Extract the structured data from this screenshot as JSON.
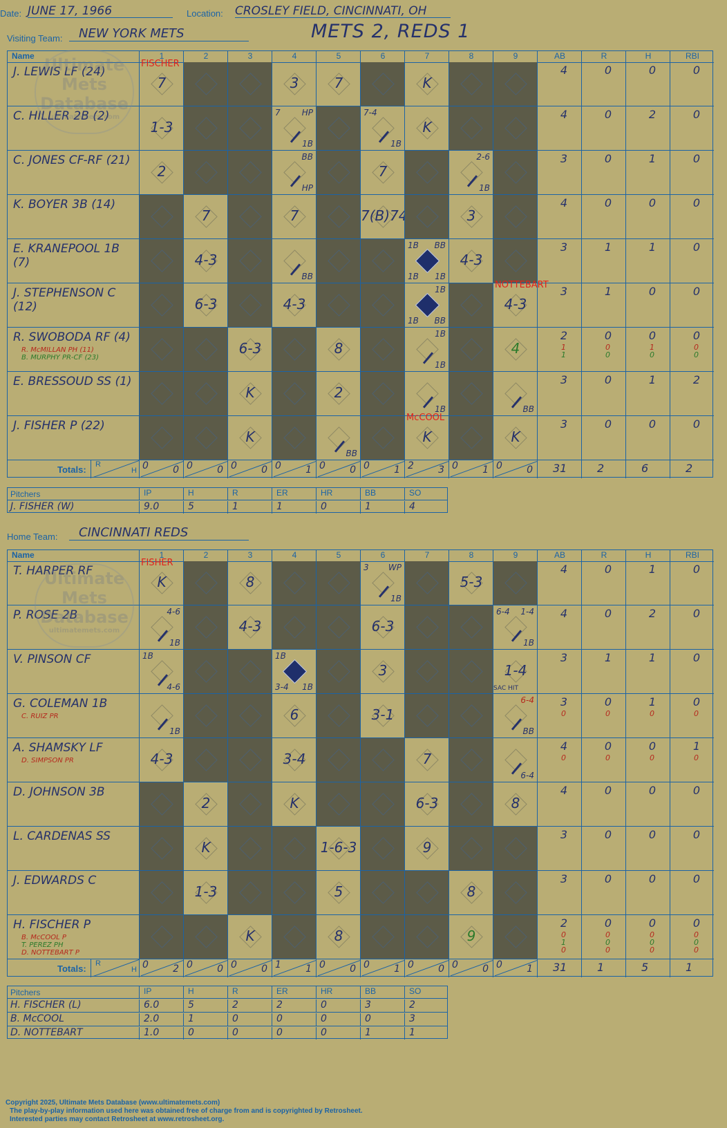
{
  "header": {
    "date_label": "Date:",
    "date": "JUNE 17, 1966",
    "location_label": "Location:",
    "location": "CROSLEY FIELD, CINCINNATI, OH",
    "visiting_label": "Visiting Team:",
    "visiting_team": "NEW YORK METS",
    "result": "METS 2, REDS 1",
    "home_label": "Home Team:",
    "home_team": "CINCINNATI REDS"
  },
  "watermark": {
    "line1": "Ultimate",
    "line2": "Mets",
    "line3": "Database",
    "line4": "ultimatemets.com"
  },
  "columns": {
    "name": "Name",
    "innings": [
      "1",
      "2",
      "3",
      "4",
      "5",
      "6",
      "7",
      "8",
      "9"
    ],
    "stats": [
      "AB",
      "R",
      "H",
      "RBI"
    ],
    "totals": "Totals:",
    "r": "R",
    "h": "H"
  },
  "pitch_cols": {
    "title": "Pitchers",
    "cols": [
      "IP",
      "H",
      "R",
      "ER",
      "HR",
      "BB",
      "SO"
    ]
  },
  "visitors": {
    "batters": [
      {
        "name": "J. LEWIS LF (24)",
        "subs": [],
        "stats": [
          [
            "4"
          ],
          [
            "0"
          ],
          [
            "0"
          ],
          [
            "0"
          ]
        ],
        "dark": [
          2,
          3,
          6,
          8,
          9
        ],
        "cells": {
          "1": {
            "mark": "7",
            "top": "FISCHER"
          },
          "4": {
            "mark": "3"
          },
          "5": {
            "mark": "7"
          },
          "7": {
            "mark": "K"
          }
        }
      },
      {
        "name": "C. HILLER 2B (2)",
        "subs": [],
        "stats": [
          [
            "4"
          ],
          [
            "0"
          ],
          [
            "2"
          ],
          [
            "0"
          ]
        ],
        "dark": [
          2,
          3,
          5,
          8,
          9
        ],
        "cells": {
          "1": {
            "mark": "1-3"
          },
          "4": {
            "a1": "7",
            "a2": "HP",
            "a3": "1B",
            "path": true
          },
          "6": {
            "a1": "7-4",
            "a3": "1B",
            "path": true
          },
          "7": {
            "mark": "K"
          }
        }
      },
      {
        "name": "C. JONES CF-RF (21)",
        "subs": [],
        "stats": [
          [
            "3"
          ],
          [
            "0"
          ],
          [
            "1"
          ],
          [
            "0"
          ]
        ],
        "dark": [
          2,
          3,
          5,
          7,
          9
        ],
        "cells": {
          "1": {
            "mark": "2"
          },
          "4": {
            "a2": "BB",
            "a3": "HP",
            "path": true
          },
          "6": {
            "mark": "7"
          },
          "8": {
            "a2": "2-6",
            "a3": "1B",
            "path": true
          }
        }
      },
      {
        "name": "K. BOYER 3B (14)",
        "subs": [],
        "stats": [
          [
            "4"
          ],
          [
            "0"
          ],
          [
            "0"
          ],
          [
            "0"
          ]
        ],
        "dark": [
          1,
          3,
          5,
          7,
          9
        ],
        "cells": {
          "2": {
            "mark": "7"
          },
          "4": {
            "mark": "7"
          },
          "6": {
            "mark": "7(B)74"
          },
          "8": {
            "mark": "3"
          }
        }
      },
      {
        "name": "E. KRANEPOOL 1B (7)",
        "subs": [],
        "stats": [
          [
            "3"
          ],
          [
            "1"
          ],
          [
            "1"
          ],
          [
            "0"
          ]
        ],
        "dark": [
          1,
          3,
          5,
          6,
          9
        ],
        "cells": {
          "2": {
            "mark": "4-3"
          },
          "4": {
            "a3": "BB",
            "path": true
          },
          "7": {
            "a1": "1B",
            "a2": "BB",
            "a3": "1B",
            "a4": "1B",
            "run": true
          },
          "8": {
            "mark": "4-3"
          }
        }
      },
      {
        "name": "J. STEPHENSON C (12)",
        "subs": [],
        "stats": [
          [
            "3"
          ],
          [
            "1"
          ],
          [
            "0"
          ],
          [
            "0"
          ]
        ],
        "dark": [
          1,
          3,
          5,
          6,
          8
        ],
        "cells": {
          "2": {
            "mark": "6-3"
          },
          "4": {
            "mark": "4-3"
          },
          "7": {
            "a2": "1B",
            "a3": "BB",
            "a4": "1B",
            "run": true
          },
          "9": {
            "mark": "4-3",
            "top": "NOTTEBART"
          }
        }
      },
      {
        "name": "R. SWOBODA RF (4)",
        "subs": [
          {
            "name": "R. McMILLAN PH (11)",
            "cls": "dred"
          },
          {
            "name": "B. MURPHY PR-CF (23)",
            "cls": "grn"
          }
        ],
        "stats": [
          [
            "2",
            "1",
            "1"
          ],
          [
            "0",
            "0",
            "0"
          ],
          [
            "0",
            "1",
            "0"
          ],
          [
            "0",
            "0",
            "0"
          ]
        ],
        "dark": [
          1,
          2,
          4,
          6,
          8
        ],
        "cells": {
          "3": {
            "mark": "6-3"
          },
          "5": {
            "mark": "8"
          },
          "7": {
            "a2": "1B",
            "a3": "1B",
            "path": true
          },
          "9": {
            "mark": "4",
            "cls": "grn"
          }
        }
      },
      {
        "name": "E. BRESSOUD SS (1)",
        "subs": [],
        "stats": [
          [
            "3"
          ],
          [
            "0"
          ],
          [
            "1"
          ],
          [
            "2"
          ]
        ],
        "dark": [
          1,
          2,
          4,
          6,
          8
        ],
        "cells": {
          "3": {
            "mark": "K"
          },
          "5": {
            "mark": "2"
          },
          "7": {
            "a3": "1B",
            "path": true
          },
          "9": {
            "a3": "BB",
            "path": true
          }
        }
      },
      {
        "name": "J. FISHER P (22)",
        "subs": [],
        "stats": [
          [
            "3"
          ],
          [
            "0"
          ],
          [
            "0"
          ],
          [
            "0"
          ]
        ],
        "dark": [
          1,
          2,
          4,
          6,
          8
        ],
        "cells": {
          "3": {
            "mark": "K"
          },
          "5": {
            "a3": "BB",
            "path": true
          },
          "7": {
            "mark": "K",
            "top": "McCOOL"
          },
          "9": {
            "mark": "K"
          }
        }
      }
    ],
    "totals": {
      "rh": [
        [
          "0",
          "0"
        ],
        [
          "0",
          "0"
        ],
        [
          "0",
          "0"
        ],
        [
          "0",
          "1"
        ],
        [
          "0",
          "0"
        ],
        [
          "0",
          "1"
        ],
        [
          "2",
          "3"
        ],
        [
          "0",
          "1"
        ],
        [
          "0",
          "0"
        ]
      ],
      "stats": [
        "31",
        "2",
        "6",
        "2"
      ]
    },
    "pitchers": [
      {
        "name": "J. FISHER (W)",
        "vals": [
          "9.0",
          "5",
          "1",
          "1",
          "0",
          "1",
          "4"
        ]
      }
    ]
  },
  "home": {
    "batters": [
      {
        "name": "T. HARPER RF",
        "subs": [],
        "stats": [
          [
            "4"
          ],
          [
            "0"
          ],
          [
            "1"
          ],
          [
            "0"
          ]
        ],
        "dark": [
          2,
          4,
          5,
          7,
          9
        ],
        "cells": {
          "1": {
            "mark": "K",
            "top": "FISHER"
          },
          "3": {
            "mark": "8"
          },
          "6": {
            "a1": "3",
            "a2": "WP",
            "a3": "1B",
            "path": true
          },
          "8": {
            "mark": "5-3"
          }
        }
      },
      {
        "name": "P. ROSE 2B",
        "subs": [],
        "stats": [
          [
            "4"
          ],
          [
            "0"
          ],
          [
            "2"
          ],
          [
            "0"
          ]
        ],
        "dark": [
          2,
          4,
          5,
          7,
          8
        ],
        "cells": {
          "1": {
            "a2": "4-6",
            "a3": "1B",
            "path": true
          },
          "3": {
            "mark": "4-3"
          },
          "6": {
            "mark": "6-3"
          },
          "9": {
            "a1": "6-4",
            "a2": "1-4",
            "a3": "1B",
            "path": true
          }
        }
      },
      {
        "name": "V. PINSON CF",
        "subs": [],
        "stats": [
          [
            "3"
          ],
          [
            "1"
          ],
          [
            "1"
          ],
          [
            "0"
          ]
        ],
        "dark": [
          2,
          3,
          5,
          7,
          8
        ],
        "cells": {
          "1": {
            "a1": "1B",
            "a3": "4-6",
            "path": true
          },
          "4": {
            "a1": "1B",
            "a3": "1B",
            "a4": "3-4",
            "run": true
          },
          "6": {
            "mark": "3"
          },
          "9": {
            "mark": "1-4",
            "sac": "SAC HIT"
          }
        }
      },
      {
        "name": "G. COLEMAN 1B",
        "subs": [
          {
            "name": "C. RUIZ PR",
            "cls": "dred"
          }
        ],
        "stats": [
          [
            "3",
            "0"
          ],
          [
            "0",
            "0"
          ],
          [
            "1",
            "0"
          ],
          [
            "0",
            "0"
          ]
        ],
        "dark": [
          2,
          3,
          5,
          7,
          8
        ],
        "cells": {
          "1": {
            "a3": "1B",
            "path": true
          },
          "4": {
            "mark": "6"
          },
          "6": {
            "mark": "3-1"
          },
          "9": {
            "a2": "6-4",
            "a3": "BB",
            "path": true,
            "a2cls": "dred"
          }
        }
      },
      {
        "name": "A. SHAMSKY LF",
        "subs": [
          {
            "name": "D. SIMPSON PR",
            "cls": "dred"
          }
        ],
        "stats": [
          [
            "4",
            "0"
          ],
          [
            "0",
            "0"
          ],
          [
            "0",
            "0"
          ],
          [
            "1",
            "0"
          ]
        ],
        "dark": [
          2,
          3,
          5,
          6,
          8
        ],
        "cells": {
          "1": {
            "mark": "4-3"
          },
          "4": {
            "mark": "3-4"
          },
          "7": {
            "mark": "7"
          },
          "9": {
            "a3": "6-4",
            "path": true
          }
        }
      },
      {
        "name": "D. JOHNSON 3B",
        "subs": [],
        "stats": [
          [
            "4"
          ],
          [
            "0"
          ],
          [
            "0"
          ],
          [
            "0"
          ]
        ],
        "dark": [
          1,
          3,
          5,
          6,
          8
        ],
        "cells": {
          "2": {
            "mark": "2"
          },
          "4": {
            "mark": "K"
          },
          "7": {
            "mark": "6-3"
          },
          "9": {
            "mark": "8"
          }
        }
      },
      {
        "name": "L. CARDENAS SS",
        "subs": [],
        "stats": [
          [
            "3"
          ],
          [
            "0"
          ],
          [
            "0"
          ],
          [
            "0"
          ]
        ],
        "dark": [
          1,
          3,
          4,
          6,
          8,
          9
        ],
        "cells": {
          "2": {
            "mark": "K"
          },
          "5": {
            "mark": "1-6-3"
          },
          "7": {
            "mark": "9"
          }
        }
      },
      {
        "name": "J. EDWARDS C",
        "subs": [],
        "stats": [
          [
            "3"
          ],
          [
            "0"
          ],
          [
            "0"
          ],
          [
            "0"
          ]
        ],
        "dark": [
          1,
          3,
          4,
          6,
          7,
          9
        ],
        "cells": {
          "2": {
            "mark": "1-3"
          },
          "5": {
            "mark": "5"
          },
          "8": {
            "mark": "8"
          }
        }
      },
      {
        "name": "H. FISCHER P",
        "subs": [
          {
            "name": "B. McCOOL P",
            "cls": "dred"
          },
          {
            "name": "T. PEREZ PH",
            "cls": "grn"
          },
          {
            "name": "D. NOTTEBART P",
            "cls": "dred"
          }
        ],
        "stats": [
          [
            "2",
            "0",
            "1",
            "0"
          ],
          [
            "0",
            "0",
            "0",
            "0"
          ],
          [
            "0",
            "0",
            "0",
            "0"
          ],
          [
            "0",
            "0",
            "0",
            "0"
          ]
        ],
        "dark": [
          1,
          2,
          4,
          6,
          7,
          9
        ],
        "cells": {
          "3": {
            "mark": "K"
          },
          "5": {
            "mark": "8"
          },
          "8": {
            "mark": "9",
            "cls": "grn"
          }
        }
      }
    ],
    "totals": {
      "rh": [
        [
          "0",
          "2"
        ],
        [
          "0",
          "0"
        ],
        [
          "0",
          "0"
        ],
        [
          "1",
          "1"
        ],
        [
          "0",
          "0"
        ],
        [
          "0",
          "1"
        ],
        [
          "0",
          "0"
        ],
        [
          "0",
          "0"
        ],
        [
          "0",
          "1"
        ]
      ],
      "stats": [
        "31",
        "1",
        "5",
        "1"
      ]
    },
    "pitchers": [
      {
        "name": "H. FISCHER (L)",
        "vals": [
          "6.0",
          "5",
          "2",
          "2",
          "0",
          "3",
          "2"
        ]
      },
      {
        "name": "B. McCOOL",
        "vals": [
          "2.0",
          "1",
          "0",
          "0",
          "0",
          "0",
          "3"
        ]
      },
      {
        "name": "D. NOTTEBART",
        "vals": [
          "1.0",
          "0",
          "0",
          "0",
          "0",
          "1",
          "1"
        ]
      }
    ]
  },
  "footer": {
    "line1": "Copyright 2025, Ultimate Mets Database (www.ultimatemets.com)",
    "line2": "The play-by-play information used here was obtained free of charge from and is copyrighted by Retrosheet.",
    "line3": "Interested parties may contact Retrosheet at www.retrosheet.org."
  },
  "colors": {
    "bg": "#b9ad74",
    "dark": "#5c5b48",
    "grid": "#1b63a6",
    "ink": "#25316b",
    "red": "#e0221b"
  }
}
